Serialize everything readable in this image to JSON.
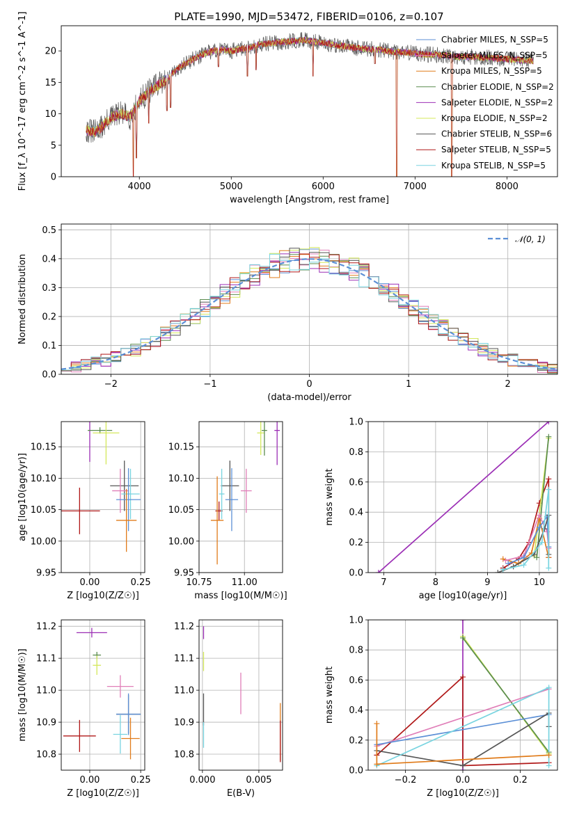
{
  "figure": {
    "title": "PLATE=1990, MJD=53472, FIBERID=0106, z=0.107"
  },
  "colors": {
    "chabrier_miles": "#5b8fd6",
    "salpeter_miles": "#e07eb8",
    "kroupa_miles": "#e07b1a",
    "chabrier_elodie": "#5a8c4f",
    "salpeter_elodie": "#9b2eb5",
    "kroupa_elodie": "#d4e85a",
    "chabrier_stelib": "#555555",
    "salpeter_stelib": "#b01818",
    "kroupa_stelib": "#78d4e0",
    "gaussian": "#5b8fd6"
  },
  "chart_data": [
    {
      "id": "spectrum",
      "type": "line",
      "xlabel": "wavelength [Angstrom, rest frame]",
      "ylabel": "Flux [f_λ 10^-17 erg cm^-2 s^-1 A^-1]",
      "xlim": [
        3150,
        8550
      ],
      "ylim": [
        0,
        24
      ],
      "xticks": [
        "4000",
        "5000",
        "6000",
        "7000",
        "8000"
      ],
      "yticks": [
        "0",
        "5",
        "10",
        "15",
        "20"
      ],
      "legend_position": "upper right",
      "legend": [
        {
          "label": "Chabrier MILES, N_SSP=5",
          "color_key": "chabrier_miles"
        },
        {
          "label": "Salpeter MILES, N_SSP=5",
          "color_key": "salpeter_miles"
        },
        {
          "label": "Kroupa MILES, N_SSP=5",
          "color_key": "kroupa_miles"
        },
        {
          "label": "Chabrier ELODIE, N_SSP=2",
          "color_key": "chabrier_elodie"
        },
        {
          "label": "Salpeter ELODIE, N_SSP=2",
          "color_key": "salpeter_elodie"
        },
        {
          "label": "Kroupa ELODIE, N_SSP=2",
          "color_key": "kroupa_elodie"
        },
        {
          "label": "Chabrier STELIB, N_SSP=6",
          "color_key": "chabrier_stelib"
        },
        {
          "label": "Salpeter STELIB, N_SSP=5",
          "color_key": "salpeter_stelib"
        },
        {
          "label": "Kroupa STELIB, N_SSP=5",
          "color_key": "kroupa_stelib"
        }
      ],
      "continuum": [
        [
          3420,
          7.5
        ],
        [
          3500,
          7.0
        ],
        [
          3600,
          8.0
        ],
        [
          3700,
          9.5
        ],
        [
          3800,
          10.0
        ],
        [
          3900,
          9.5
        ],
        [
          4000,
          12.0
        ],
        [
          4100,
          13.5
        ],
        [
          4200,
          14.5
        ],
        [
          4300,
          15.5
        ],
        [
          4400,
          17.0
        ],
        [
          4500,
          18.0
        ],
        [
          4600,
          18.8
        ],
        [
          4700,
          19.5
        ],
        [
          4800,
          20.0
        ],
        [
          4900,
          20.2
        ],
        [
          5000,
          20.0
        ],
        [
          5100,
          20.3
        ],
        [
          5200,
          20.5
        ],
        [
          5300,
          21.0
        ],
        [
          5400,
          21.2
        ],
        [
          5500,
          21.3
        ],
        [
          5600,
          21.5
        ],
        [
          5700,
          21.6
        ],
        [
          5800,
          21.7
        ],
        [
          5900,
          21.5
        ],
        [
          6000,
          21.3
        ],
        [
          6100,
          21.0
        ],
        [
          6200,
          20.8
        ],
        [
          6300,
          20.6
        ],
        [
          6400,
          20.4
        ],
        [
          6500,
          20.3
        ],
        [
          6600,
          20.2
        ],
        [
          6700,
          20.0
        ],
        [
          6800,
          19.8
        ],
        [
          6900,
          19.8
        ],
        [
          7000,
          19.6
        ],
        [
          7100,
          19.5
        ],
        [
          7200,
          19.4
        ],
        [
          7300,
          19.3
        ],
        [
          7400,
          19.2
        ],
        [
          7500,
          19.0
        ],
        [
          7600,
          19.1
        ],
        [
          7700,
          19.0
        ],
        [
          7800,
          18.9
        ],
        [
          7900,
          18.8
        ],
        [
          8000,
          18.7
        ],
        [
          8100,
          18.6
        ],
        [
          8200,
          18.5
        ],
        [
          8290,
          18.4
        ]
      ],
      "absorption_dips": [
        [
          3934,
          0.0
        ],
        [
          3969,
          3.0
        ],
        [
          4102,
          8.5
        ],
        [
          4300,
          10.5
        ],
        [
          4340,
          11.0
        ],
        [
          4861,
          17.5
        ],
        [
          5175,
          16.0
        ],
        [
          5270,
          17.0
        ],
        [
          5890,
          16.0
        ],
        [
          6563,
          18.0
        ],
        [
          6800,
          0.0
        ],
        [
          7400,
          0.0
        ]
      ]
    },
    {
      "id": "residuals",
      "type": "line",
      "xlabel": "(data-model)/error",
      "ylabel": "Normed distribution",
      "xlim": [
        -2.5,
        2.5
      ],
      "ylim": [
        0,
        0.52
      ],
      "xticks": [
        "−2",
        "−1",
        "0",
        "1",
        "2"
      ],
      "yticks": [
        "0.0",
        "0.1",
        "0.2",
        "0.3",
        "0.4",
        "0.5"
      ],
      "grid": true,
      "legend_position": "upper right",
      "legend": [
        {
          "label": "𝒩(0, 1)",
          "color_key": "gaussian"
        }
      ],
      "gaussian": {
        "mean": 0,
        "sigma": 1,
        "style": "dashed"
      },
      "bin_width": 0.1,
      "bin_range": [
        -2.5,
        2.5
      ]
    },
    {
      "id": "age_vs_Z",
      "type": "scatter",
      "xlabel": "Z [log10(Z/Z☉)]",
      "ylabel": "age [log10(age/yr)]",
      "xlim": [
        -0.14,
        0.27
      ],
      "ylim": [
        9.95,
        10.19
      ],
      "xticks": [
        "0.00",
        "0.25"
      ],
      "yticks": [
        "9.95",
        "10.00",
        "10.05",
        "10.10",
        "10.15"
      ],
      "grid": true,
      "points": [
        {
          "key": "salpeter_stelib",
          "x": -0.05,
          "xerr": 0.1,
          "y": 10.048,
          "yerr": 0.037
        },
        {
          "key": "salpeter_elodie",
          "x": 0.0,
          "xerr": 0.003,
          "y": 10.176,
          "yerr": 0.05
        },
        {
          "key": "chabrier_elodie",
          "x": 0.05,
          "xerr": 0.06,
          "y": 10.176,
          "yerr": 0.005
        },
        {
          "key": "kroupa_elodie",
          "x": 0.08,
          "xerr": 0.065,
          "y": 10.172,
          "yerr": 0.05
        },
        {
          "key": "chabrier_stelib",
          "x": 0.17,
          "xerr": 0.07,
          "y": 10.088,
          "yerr": 0.04
        },
        {
          "key": "salpeter_miles",
          "x": 0.15,
          "xerr": 0.04,
          "y": 10.08,
          "yerr": 0.035
        },
        {
          "key": "kroupa_stelib",
          "x": 0.2,
          "xerr": 0.045,
          "y": 10.075,
          "yerr": 0.04
        },
        {
          "key": "chabrier_miles",
          "x": 0.19,
          "xerr": 0.06,
          "y": 10.066,
          "yerr": 0.05
        },
        {
          "key": "kroupa_miles",
          "x": 0.18,
          "xerr": 0.05,
          "y": 10.033,
          "yerr": 0.05
        }
      ]
    },
    {
      "id": "age_vs_mass",
      "type": "scatter",
      "xlabel": "mass [log10(M/M☉)]",
      "ylabel": "",
      "xlim": [
        10.75,
        11.21
      ],
      "ylim": [
        9.95,
        10.19
      ],
      "xticks": [
        "10.75",
        "11.00"
      ],
      "yticks": [
        "9.95",
        "10.00",
        "10.05",
        "10.10",
        "10.15"
      ],
      "grid": true,
      "points": [
        {
          "key": "salpeter_stelib",
          "x": 10.86,
          "xerr": 0.02,
          "y": 10.048,
          "yerr": 0.015
        },
        {
          "key": "kroupa_miles",
          "x": 10.85,
          "xerr": 0.035,
          "y": 10.033,
          "yerr": 0.07
        },
        {
          "key": "chabrier_stelib",
          "x": 10.92,
          "xerr": 0.05,
          "y": 10.088,
          "yerr": 0.04
        },
        {
          "key": "chabrier_miles",
          "x": 10.93,
          "xerr": 0.035,
          "y": 10.066,
          "yerr": 0.05
        },
        {
          "key": "kroupa_stelib",
          "x": 10.875,
          "xerr": 0.015,
          "y": 10.075,
          "yerr": 0.04
        },
        {
          "key": "salpeter_miles",
          "x": 11.01,
          "xerr": 0.03,
          "y": 10.08,
          "yerr": 0.035
        },
        {
          "key": "kroupa_elodie",
          "x": 11.09,
          "xerr": 0.02,
          "y": 10.172,
          "yerr": 0.035
        },
        {
          "key": "chabrier_elodie",
          "x": 11.11,
          "xerr": 0.015,
          "y": 10.176,
          "yerr": 0.04
        },
        {
          "key": "salpeter_elodie",
          "x": 11.18,
          "xerr": 0.015,
          "y": 10.176,
          "yerr": 0.055
        }
      ]
    },
    {
      "id": "massweight_vs_age",
      "type": "line",
      "xlabel": "age [log10(age/yr)]",
      "ylabel": "mass weight",
      "xlim": [
        6.7,
        10.35
      ],
      "ylim": [
        0,
        1
      ],
      "xticks": [
        "7",
        "8",
        "9",
        "10"
      ],
      "yticks": [
        "0.0",
        "0.2",
        "0.4",
        "0.6",
        "0.8",
        "1.0"
      ],
      "grid": true,
      "series": [
        {
          "key": "salpeter_elodie",
          "points": [
            [
              6.9,
              0.0
            ],
            [
              10.18,
              1.0
            ]
          ]
        },
        {
          "key": "salpeter_stelib",
          "points": [
            [
              9.3,
              0.03
            ],
            [
              9.6,
              0.09
            ],
            [
              9.8,
              0.2
            ],
            [
              10.0,
              0.46
            ],
            [
              10.18,
              0.62
            ],
            [
              10.18,
              0.1
            ]
          ]
        },
        {
          "key": "kroupa_elodie",
          "points": [
            [
              9.9,
              0.11
            ],
            [
              10.18,
              0.89
            ]
          ]
        },
        {
          "key": "chabrier_elodie",
          "points": [
            [
              9.95,
              0.1
            ],
            [
              10.18,
              0.9
            ]
          ]
        },
        {
          "key": "kroupa_miles",
          "points": [
            [
              9.3,
              0.09
            ],
            [
              9.6,
              0.06
            ],
            [
              9.85,
              0.13
            ],
            [
              10.0,
              0.36
            ],
            [
              10.18,
              0.1
            ]
          ]
        },
        {
          "key": "salpeter_miles",
          "points": [
            [
              9.35,
              0.08
            ],
            [
              9.7,
              0.11
            ],
            [
              10.0,
              0.38
            ],
            [
              10.15,
              0.27
            ],
            [
              10.18,
              0.16
            ]
          ]
        },
        {
          "key": "chabrier_miles",
          "points": [
            [
              9.4,
              0.06
            ],
            [
              9.7,
              0.1
            ],
            [
              10.0,
              0.3
            ],
            [
              10.15,
              0.37
            ],
            [
              10.18,
              0.17
            ]
          ]
        },
        {
          "key": "chabrier_stelib",
          "points": [
            [
              9.2,
              0.0
            ],
            [
              9.5,
              0.04
            ],
            [
              9.9,
              0.12
            ],
            [
              10.1,
              0.29
            ],
            [
              10.18,
              0.38
            ],
            [
              10.18,
              0.12
            ]
          ]
        },
        {
          "key": "kroupa_stelib",
          "points": [
            [
              9.3,
              0.02
            ],
            [
              9.7,
              0.05
            ],
            [
              10.05,
              0.2
            ],
            [
              10.18,
              0.55
            ],
            [
              10.18,
              0.03
            ]
          ]
        }
      ]
    },
    {
      "id": "mass_vs_Z",
      "type": "scatter",
      "xlabel": "Z [log10(Z/Z☉)]",
      "ylabel": "mass [log10(M/M☉)]",
      "xlim": [
        -0.14,
        0.27
      ],
      "ylim": [
        10.75,
        11.22
      ],
      "xticks": [
        "0.00",
        "0.25"
      ],
      "yticks": [
        "10.8",
        "10.9",
        "11.0",
        "11.1",
        "11.2"
      ],
      "grid": true,
      "points": [
        {
          "key": "salpeter_stelib",
          "x": -0.05,
          "xerr": 0.08,
          "y": 10.857,
          "yerr": 0.05
        },
        {
          "key": "salpeter_elodie",
          "x": 0.01,
          "xerr": 0.075,
          "y": 11.18,
          "yerr": 0.015
        },
        {
          "key": "chabrier_elodie",
          "x": 0.035,
          "xerr": 0.02,
          "y": 11.11,
          "yerr": 0.01
        },
        {
          "key": "kroupa_elodie",
          "x": 0.035,
          "xerr": 0.02,
          "y": 11.078,
          "yerr": 0.03
        },
        {
          "key": "salpeter_miles",
          "x": 0.15,
          "xerr": 0.065,
          "y": 11.012,
          "yerr": 0.035
        },
        {
          "key": "chabrier_stelib",
          "x": 0.19,
          "xerr": 0.06,
          "y": 10.925,
          "yerr": 0.06
        },
        {
          "key": "chabrier_miles",
          "x": 0.19,
          "xerr": 0.06,
          "y": 10.925,
          "yerr": 0.065
        },
        {
          "key": "kroupa_stelib",
          "x": 0.15,
          "xerr": 0.035,
          "y": 10.862,
          "yerr": 0.06
        },
        {
          "key": "kroupa_miles",
          "x": 0.2,
          "xerr": 0.045,
          "y": 10.849,
          "yerr": 0.065
        }
      ]
    },
    {
      "id": "mass_vs_ebv",
      "type": "scatter",
      "xlabel": "E(B-V)",
      "ylabel": "",
      "xlim": [
        -0.0003,
        0.0071
      ],
      "ylim": [
        10.75,
        11.22
      ],
      "xticks": [
        "0.000",
        "0.005"
      ],
      "yticks": [
        "10.8",
        "10.9",
        "11.0",
        "11.1",
        "11.2"
      ],
      "grid": true,
      "points": [
        {
          "key": "salpeter_elodie",
          "x": 0.0001,
          "xerr": 0.0,
          "y": 11.18,
          "yerr": 0.02
        },
        {
          "key": "kroupa_elodie",
          "x": 0.0001,
          "xerr": 0.0,
          "y": 11.09,
          "yerr": 0.03
        },
        {
          "key": "chabrier_stelib",
          "x": 0.0001,
          "xerr": 0.0,
          "y": 10.94,
          "yerr": 0.05
        },
        {
          "key": "kroupa_stelib",
          "x": 0.0001,
          "xerr": 0.0,
          "y": 10.86,
          "yerr": 0.04
        },
        {
          "key": "salpeter_miles",
          "x": 0.0034,
          "xerr": 0.0,
          "y": 10.99,
          "yerr": 0.065
        },
        {
          "key": "kroupa_miles",
          "x": 0.0069,
          "xerr": 0.0,
          "y": 10.87,
          "yerr": 0.09
        },
        {
          "key": "salpeter_stelib",
          "x": 0.0069,
          "xerr": 0.0,
          "y": 10.84,
          "yerr": 0.065
        }
      ]
    },
    {
      "id": "massweight_vs_Z",
      "type": "line",
      "xlabel": "Z [log10(Z/Z☉)]",
      "ylabel": "mass weight",
      "xlim": [
        -0.33,
        0.33
      ],
      "ylim": [
        0,
        1
      ],
      "xticks": [
        "−0.2",
        "0.0",
        "0.2"
      ],
      "yticks": [
        "0.0",
        "0.2",
        "0.4",
        "0.6",
        "0.8",
        "1.0"
      ],
      "grid": true,
      "series": [
        {
          "key": "salpeter_elodie",
          "points": [
            [
              0.0,
              0.0
            ],
            [
              0.0,
              1.0
            ]
          ]
        },
        {
          "key": "salpeter_stelib",
          "points": [
            [
              -0.3,
              0.1
            ],
            [
              0.0,
              0.62
            ],
            [
              0.0,
              0.03
            ],
            [
              0.3,
              0.05
            ]
          ]
        },
        {
          "key": "kroupa_elodie",
          "points": [
            [
              0.0,
              0.89
            ],
            [
              0.3,
              0.11
            ]
          ]
        },
        {
          "key": "chabrier_elodie",
          "points": [
            [
              0.0,
              0.88
            ],
            [
              0.3,
              0.12
            ]
          ]
        },
        {
          "key": "salpeter_miles",
          "points": [
            [
              -0.3,
              0.16
            ],
            [
              0.3,
              0.54
            ]
          ]
        },
        {
          "key": "chabrier_miles",
          "points": [
            [
              -0.3,
              0.17
            ],
            [
              0.3,
              0.37
            ]
          ]
        },
        {
          "key": "chabrier_stelib",
          "points": [
            [
              -0.3,
              0.13
            ],
            [
              0.0,
              0.03
            ],
            [
              0.3,
              0.38
            ],
            [
              0.3,
              0.29
            ]
          ]
        },
        {
          "key": "kroupa_stelib",
          "points": [
            [
              -0.3,
              0.03
            ],
            [
              0.3,
              0.55
            ],
            [
              0.3,
              0.03
            ]
          ]
        },
        {
          "key": "kroupa_miles",
          "points": [
            [
              -0.3,
              0.31
            ],
            [
              -0.3,
              0.04
            ],
            [
              0.3,
              0.1
            ]
          ]
        }
      ]
    }
  ]
}
